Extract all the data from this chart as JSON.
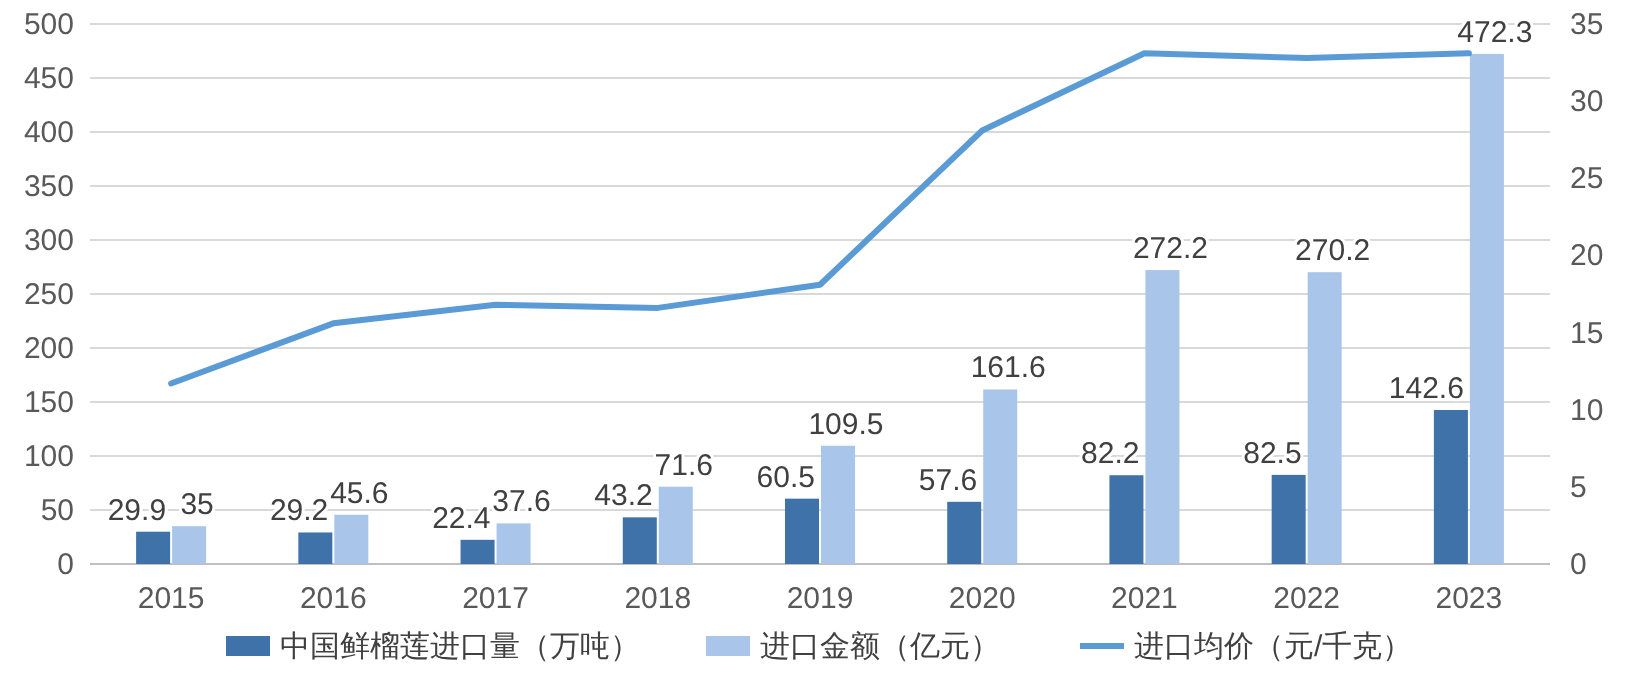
{
  "chart_data": {
    "type": "bar",
    "categories": [
      "2015",
      "2016",
      "2017",
      "2018",
      "2019",
      "2020",
      "2021",
      "2022",
      "2023"
    ],
    "series": [
      {
        "name": "中国鲜榴莲进口量（万吨）",
        "color": "#3e72a8",
        "values": [
          29.9,
          29.2,
          22.4,
          43.2,
          60.5,
          57.6,
          82.2,
          82.5,
          142.6
        ],
        "value_labels": [
          "29.9",
          "29.2",
          "22.4",
          "43.2",
          "60.5",
          "57.6",
          "82.2",
          "82.5",
          "142.6"
        ]
      },
      {
        "name": "进口金额（亿元）",
        "color": "#a9c5ea",
        "values": [
          35,
          45.6,
          37.6,
          71.6,
          109.5,
          161.6,
          272.2,
          270.2,
          472.3
        ],
        "value_labels": [
          "35",
          "45.6",
          "37.6",
          "71.6",
          "109.5",
          "161.6",
          "272.2",
          "270.2",
          "472.3"
        ]
      },
      {
        "name": "进口均价（元/千克）",
        "type": "line",
        "axis": "y2",
        "color": "#5b9bd5",
        "values": [
          11.7,
          15.6,
          16.8,
          16.6,
          18.1,
          28.1,
          33.1,
          32.8,
          33.1
        ]
      }
    ],
    "ylim": [
      0,
      500
    ],
    "yticks": [
      0,
      50,
      100,
      150,
      200,
      250,
      300,
      350,
      400,
      450,
      500
    ],
    "y2lim": [
      0,
      35
    ],
    "y2ticks": [
      0,
      5,
      10,
      15,
      20,
      25,
      30,
      35
    ],
    "grid": "y",
    "legend": "bottom",
    "marker": "none",
    "line_style": "solid"
  }
}
